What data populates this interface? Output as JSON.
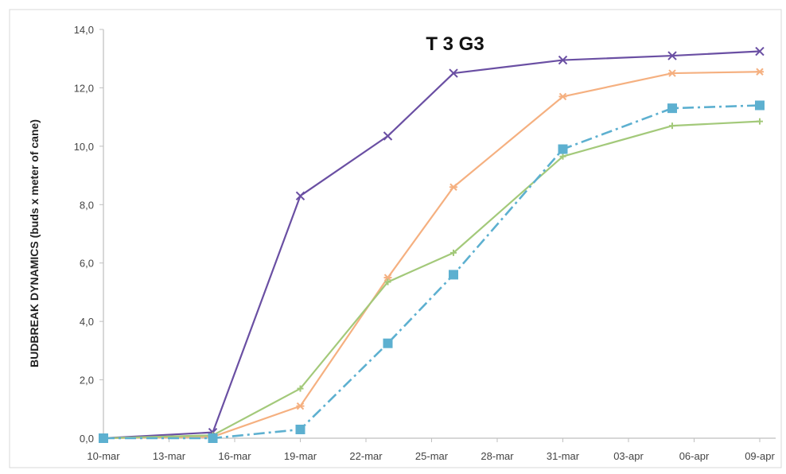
{
  "chart_data": {
    "type": "line",
    "title": "T 3 G3",
    "xlabel": "",
    "ylabel": "BUDBREAK DYNAMICS (buds x meter of cane)",
    "ylim": [
      0,
      14
    ],
    "yticks": [
      "0,0",
      "2,0",
      "4,0",
      "6,0",
      "8,0",
      "10,0",
      "12,0",
      "14,0"
    ],
    "xticks": [
      "10-mar",
      "13-mar",
      "16-mar",
      "19-mar",
      "22-mar",
      "25-mar",
      "28-mar",
      "31-mar",
      "03-apr",
      "06-apr",
      "09-apr"
    ],
    "grid": false,
    "legend": "none",
    "series": [
      {
        "color": "#6a4fa3",
        "marker": "x",
        "dash": "solid",
        "x": [
          "10-mar",
          "15-mar",
          "19-mar",
          "23-mar",
          "26-mar",
          "31-mar",
          "05-apr",
          "09-apr"
        ],
        "values": [
          0.0,
          0.2,
          8.3,
          10.35,
          12.5,
          12.95,
          13.1,
          13.25
        ]
      },
      {
        "color": "#f5b080",
        "marker": "asterisk",
        "dash": "solid",
        "x": [
          "10-mar",
          "15-mar",
          "19-mar",
          "23-mar",
          "26-mar",
          "31-mar",
          "05-apr",
          "09-apr"
        ],
        "values": [
          0.0,
          0.05,
          1.1,
          5.5,
          8.6,
          11.7,
          12.5,
          12.55
        ]
      },
      {
        "color": "#a3c97a",
        "marker": "plus",
        "dash": "solid",
        "x": [
          "10-mar",
          "15-mar",
          "19-mar",
          "23-mar",
          "26-mar",
          "31-mar",
          "05-apr",
          "09-apr"
        ],
        "values": [
          0.0,
          0.1,
          1.7,
          5.35,
          6.35,
          9.65,
          10.7,
          10.85
        ]
      },
      {
        "color": "#5db0d0",
        "marker": "square",
        "dash": "dashdot",
        "x": [
          "10-mar",
          "15-mar",
          "19-mar",
          "23-mar",
          "26-mar",
          "31-mar",
          "05-apr",
          "09-apr"
        ],
        "values": [
          0.0,
          0.0,
          0.3,
          3.25,
          5.6,
          9.9,
          11.3,
          11.4
        ]
      }
    ]
  }
}
